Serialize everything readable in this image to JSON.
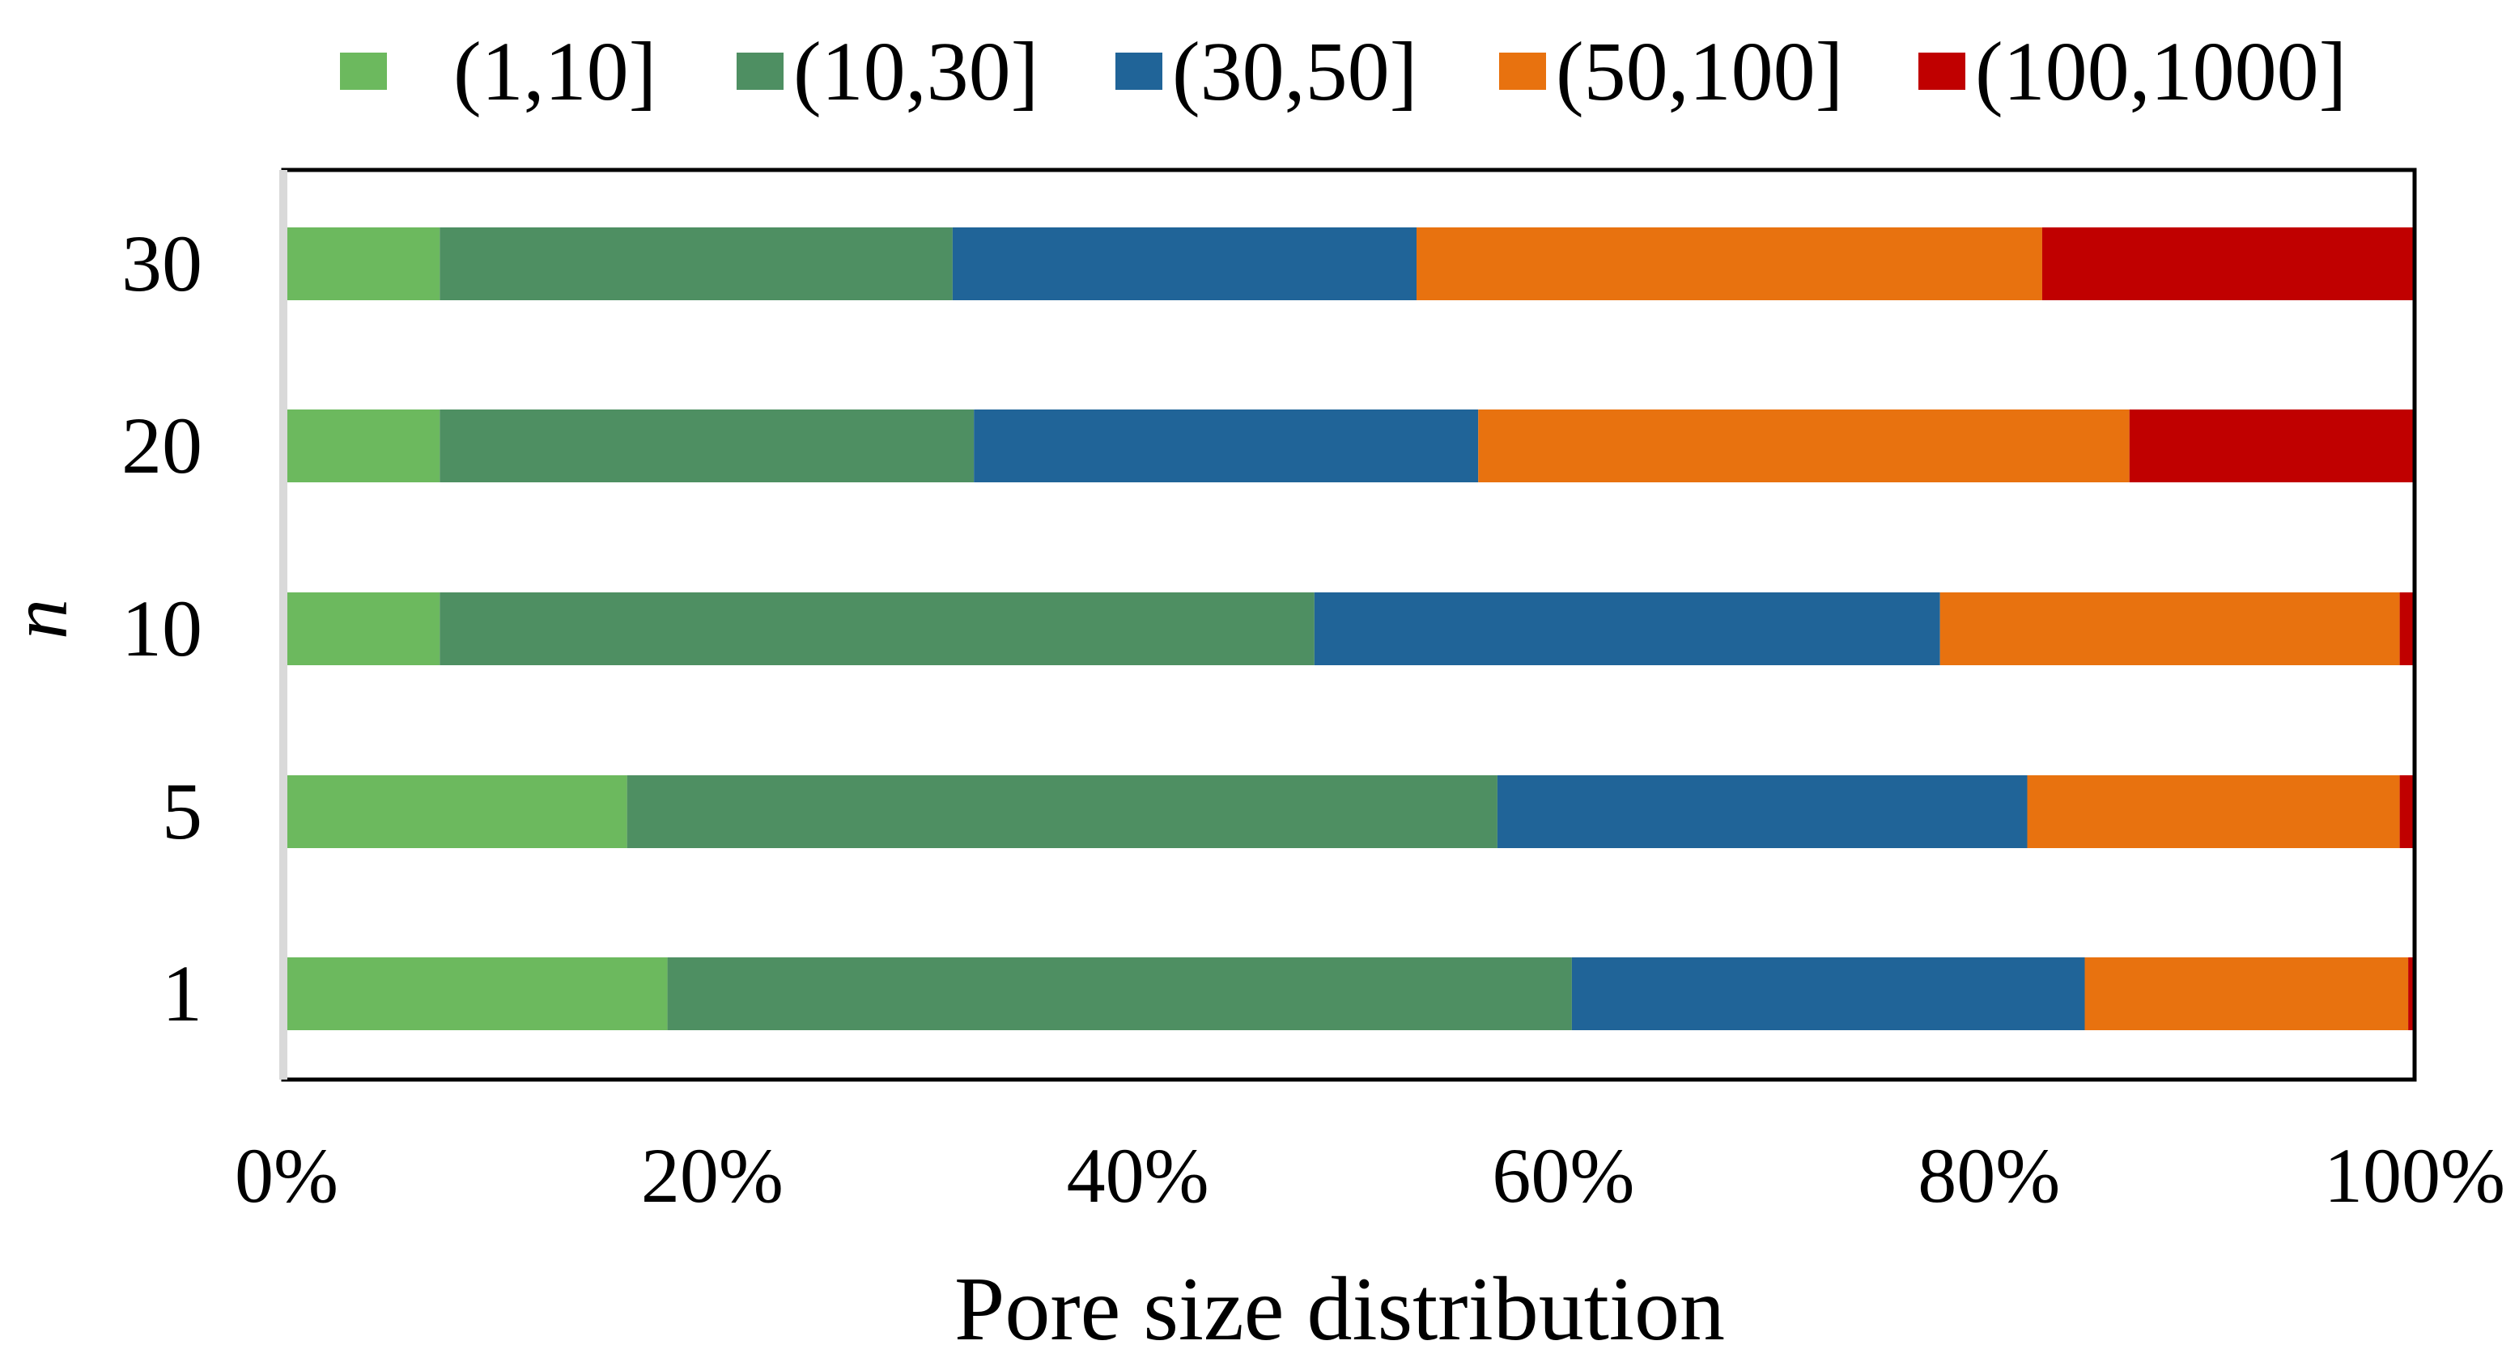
{
  "chart_data": {
    "type": "bar",
    "orientation": "horizontal",
    "stacked": "percent",
    "title": "",
    "xlabel": "Pore size distribution",
    "ylabel": "n",
    "xlim": [
      0,
      100
    ],
    "x_ticks": [
      "0%",
      "20%",
      "40%",
      "60%",
      "80%",
      "100%"
    ],
    "categories": [
      "1",
      "5",
      "10",
      "20",
      "30"
    ],
    "legend_position": "top",
    "grid": false,
    "series": [
      {
        "name": "(1,10]",
        "color": "#6cb95e",
        "values": [
          17.9,
          16.0,
          7.2,
          7.2,
          7.2
        ]
      },
      {
        "name": "(10,30]",
        "color": "#4e8f62",
        "values": [
          42.5,
          40.9,
          41.1,
          25.1,
          24.1
        ]
      },
      {
        "name": "(30,50]",
        "color": "#206498",
        "values": [
          24.1,
          24.9,
          29.4,
          23.7,
          21.8
        ]
      },
      {
        "name": "(50,100]",
        "color": "#e8720f",
        "values": [
          15.2,
          17.5,
          21.6,
          30.6,
          29.4
        ]
      },
      {
        "name": "(100,1000]",
        "color": "#c00000",
        "values": [
          0.3,
          0.7,
          0.7,
          13.4,
          17.5
        ]
      }
    ]
  }
}
